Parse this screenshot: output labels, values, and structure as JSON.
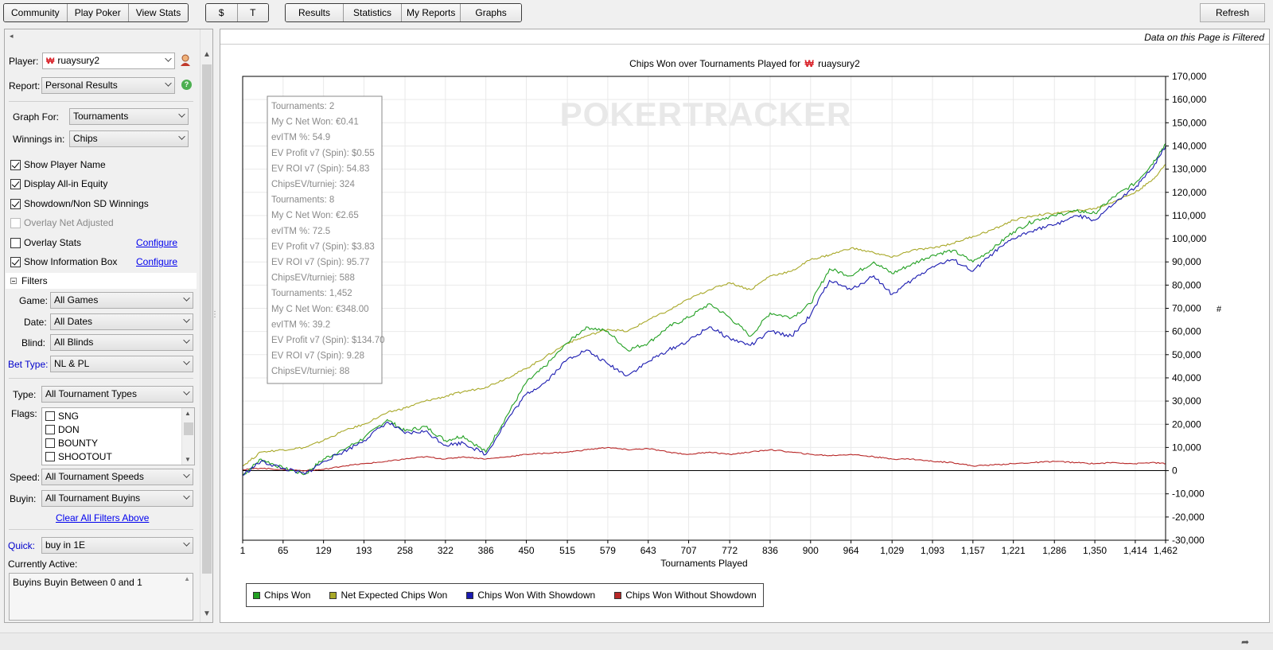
{
  "toolbar": {
    "nav": [
      "Community",
      "Play Poker",
      "View Stats"
    ],
    "currency": [
      "$",
      "T"
    ],
    "views": [
      "Results",
      "Statistics",
      "My Reports",
      "Graphs"
    ],
    "refresh": "Refresh"
  },
  "left": {
    "player_label": "Player:",
    "player_value": "ruaysury2",
    "report_label": "Report:",
    "report_value": "Personal Results",
    "graph_for_label": "Graph For:",
    "graph_for_value": "Tournaments",
    "winnings_label": "Winnings in:",
    "winnings_value": "Chips",
    "options": [
      {
        "label": "Show Player Name",
        "checked": true,
        "disabled": false
      },
      {
        "label": "Display All-in Equity",
        "checked": true,
        "disabled": false
      },
      {
        "label": "Showdown/Non SD Winnings",
        "checked": true,
        "disabled": false
      },
      {
        "label": "Overlay Net Adjusted",
        "checked": false,
        "disabled": true
      },
      {
        "label": "Overlay Stats",
        "checked": false,
        "disabled": false
      },
      {
        "label": "Show Information Box",
        "checked": true,
        "disabled": false
      }
    ],
    "configure": "Configure",
    "filters_title": "Filters",
    "game_label": "Game:",
    "game_value": "All Games",
    "date_label": "Date:",
    "date_value": "All Dates",
    "blind_label": "Blind:",
    "blind_value": "All Blinds",
    "bet_type_label": "Bet Type:",
    "bet_type_value": "NL & PL",
    "type_label": "Type:",
    "type_value": "All Tournament Types",
    "flags_label": "Flags:",
    "flags": [
      "SNG",
      "DON",
      "BOUNTY",
      "SHOOTOUT"
    ],
    "speed_label": "Speed:",
    "speed_value": "All Tournament Speeds",
    "buyin_label": "Buyin:",
    "buyin_value": "All Tournament Buyins",
    "clear_filters": "Clear All Filters Above",
    "quick_label": "Quick:",
    "quick_value": "buy in 1E",
    "currently_active_label": "Currently Active:",
    "currently_active_value": "Buyins Buyin Between 0 and 1"
  },
  "main": {
    "filtered_note": "Data on this Page is Filtered",
    "title_prefix": "Chips Won over Tournaments Played for",
    "title_player": "ruaysury2",
    "watermark": "POKERTRACKER",
    "info_box": [
      "Tournaments: 2",
      "My C Net Won: €0.41",
      "evITM %: 54.9",
      "EV Profit v7 (Spin): $0.55",
      "EV ROI v7 (Spin): 54.83",
      "ChipsEV/turniej: 324",
      "Tournaments: 8",
      "My C Net Won: €2.65",
      "evITM %: 72.5",
      "EV Profit v7 (Spin): $3.83",
      "EV ROI v7 (Spin): 95.77",
      "ChipsEV/turniej: 588",
      "Tournaments: 1,452",
      "My C Net Won: €348.00",
      "evITM %: 39.2",
      "EV Profit v7 (Spin): $134.70",
      "EV ROI v7 (Spin): 9.28",
      "ChipsEV/turniej: 88"
    ],
    "right_axis_symbol": "#"
  },
  "chart_data": {
    "type": "line",
    "title": "Chips Won over Tournaments Played for ruaysury2",
    "xlabel": "Tournaments Played",
    "ylabel": "",
    "x_ticks": [
      "1",
      "65",
      "129",
      "193",
      "258",
      "322",
      "386",
      "450",
      "515",
      "579",
      "643",
      "707",
      "772",
      "836",
      "900",
      "964",
      "1,029",
      "1,093",
      "1,157",
      "1,221",
      "1,286",
      "1,350",
      "1,414",
      "1,462"
    ],
    "y_ticks": [
      "170,000",
      "160,000",
      "150,000",
      "140,000",
      "130,000",
      "120,000",
      "110,000",
      "100,000",
      "90,000",
      "80,000",
      "70,000",
      "60,000",
      "50,000",
      "40,000",
      "30,000",
      "20,000",
      "10,000",
      "0",
      "-10,000",
      "-20,000",
      "-30,000"
    ],
    "xlim": [
      1,
      1462
    ],
    "ylim": [
      -30000,
      170000
    ],
    "grid": true,
    "legend_position": "bottom-left",
    "x": [
      1,
      30,
      65,
      100,
      129,
      160,
      193,
      230,
      258,
      290,
      322,
      350,
      386,
      420,
      450,
      480,
      515,
      545,
      579,
      610,
      643,
      675,
      707,
      740,
      772,
      805,
      836,
      870,
      900,
      930,
      964,
      1000,
      1029,
      1060,
      1093,
      1125,
      1157,
      1190,
      1221,
      1255,
      1286,
      1320,
      1350,
      1380,
      1414,
      1440,
      1462
    ],
    "series": [
      {
        "name": "Chips Won",
        "color": "#22a022",
        "values": [
          -2000,
          5000,
          1000,
          -1500,
          5000,
          9000,
          14000,
          22000,
          17000,
          19000,
          13000,
          15000,
          8000,
          24000,
          38000,
          45000,
          55000,
          62000,
          60000,
          52000,
          55000,
          62000,
          66000,
          72000,
          66000,
          58000,
          68000,
          66000,
          72000,
          87000,
          84000,
          90000,
          85000,
          89000,
          93000,
          95000,
          90000,
          96000,
          103000,
          108000,
          110000,
          112000,
          111000,
          118000,
          124000,
          132000,
          141000
        ]
      },
      {
        "name": "Net Expected Chips Won",
        "color": "#a8a828",
        "values": [
          2000,
          8000,
          9000,
          10000,
          13000,
          17000,
          20000,
          25000,
          27000,
          30000,
          32000,
          34000,
          36000,
          40000,
          44000,
          49000,
          55000,
          58000,
          61000,
          60000,
          65000,
          69000,
          74000,
          78000,
          81000,
          78000,
          84000,
          86000,
          91000,
          93000,
          96000,
          94000,
          92000,
          95000,
          96000,
          98000,
          101000,
          104000,
          108000,
          110000,
          111000,
          112000,
          113000,
          116000,
          120000,
          125000,
          132000
        ]
      },
      {
        "name": "Chips Won With Showdown",
        "color": "#1a1ab0",
        "values": [
          -2000,
          4000,
          1000,
          -1500,
          4000,
          8000,
          13000,
          21000,
          16000,
          17000,
          11000,
          12000,
          7000,
          22000,
          33000,
          38000,
          48000,
          52000,
          46000,
          41000,
          47000,
          52000,
          56000,
          62000,
          57000,
          54000,
          60000,
          58000,
          67000,
          82000,
          78000,
          84000,
          76000,
          82000,
          88000,
          91000,
          86000,
          94000,
          100000,
          104000,
          106000,
          110000,
          108000,
          115000,
          122000,
          130000,
          140000
        ]
      },
      {
        "name": "Chips Won Without Showdown",
        "color": "#b82828",
        "values": [
          500,
          1000,
          500,
          0,
          500,
          2000,
          3000,
          4000,
          5000,
          6000,
          5000,
          6000,
          5000,
          6000,
          7000,
          7500,
          8000,
          9000,
          10000,
          9000,
          9500,
          8000,
          7000,
          8000,
          7000,
          8000,
          9000,
          8000,
          7000,
          6500,
          7000,
          6000,
          5000,
          5000,
          4000,
          3500,
          2000,
          2500,
          3000,
          3500,
          4000,
          3500,
          3000,
          3500,
          3000,
          3500,
          3000
        ]
      }
    ]
  },
  "colors": {
    "chips_won": "#22a022",
    "net_expected": "#a8a828",
    "with_showdown": "#1a1ab0",
    "without_showdown": "#b82828",
    "brand": "#d81f26"
  }
}
